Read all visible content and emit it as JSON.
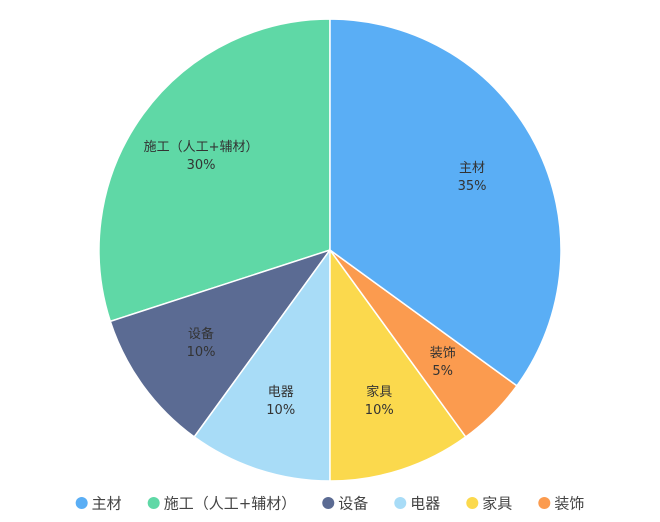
{
  "chart_data": {
    "type": "pie",
    "categories": [
      "主材",
      "施工（人工+辅材）",
      "设备",
      "电器",
      "家具",
      "装饰"
    ],
    "values": [
      35,
      30,
      10,
      10,
      10,
      5
    ],
    "value_labels": [
      "35%",
      "30%",
      "10%",
      "10%",
      "10%",
      "5%"
    ],
    "colors": [
      "#5aaef5",
      "#5fd8a6",
      "#5b6b93",
      "#a8dcf7",
      "#fbd94d",
      "#fb9b4f"
    ],
    "legend": "bottom"
  }
}
